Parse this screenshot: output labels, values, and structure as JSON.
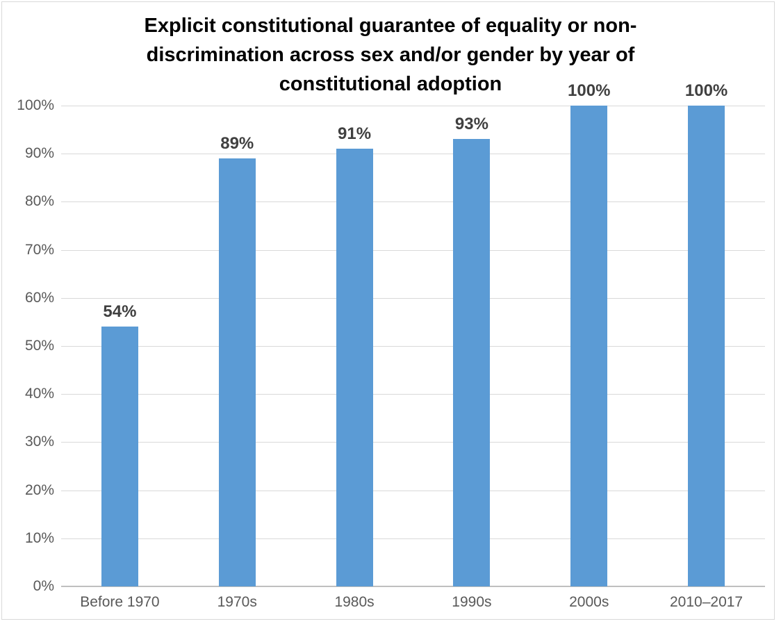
{
  "window": {
    "background": "#ffffff",
    "border_color": "#d9d9d9"
  },
  "chart_data": {
    "type": "bar",
    "title": "Explicit constitutional guarantee of equality or non-discrimination across sex and/or gender by year of constitutional adoption",
    "title_lines": [
      "Explicit constitutional guarantee of equality or non-",
      "discrimination across sex and/or gender by year of",
      "constitutional adoption"
    ],
    "categories": [
      "Before 1970",
      "1970s",
      "1980s",
      "1990s",
      "2000s",
      "2010–2017"
    ],
    "values": [
      54,
      89,
      91,
      93,
      100,
      100
    ],
    "value_labels": [
      "54%",
      "89%",
      "91%",
      "93%",
      "100%",
      "100%"
    ],
    "xlabel": "",
    "ylabel": "",
    "ylim": [
      0,
      100
    ],
    "y_tick_step": 10,
    "y_tick_labels": [
      "0%",
      "10%",
      "20%",
      "30%",
      "40%",
      "50%",
      "60%",
      "70%",
      "80%",
      "90%",
      "100%"
    ],
    "grid": true,
    "legend": "none",
    "colors": {
      "bar": "#5b9bd5",
      "gridline": "#d9d9d9",
      "axis_line": "#bfbfbf",
      "tick_label": "#595959",
      "value_label": "#404040",
      "title": "#000000"
    }
  }
}
